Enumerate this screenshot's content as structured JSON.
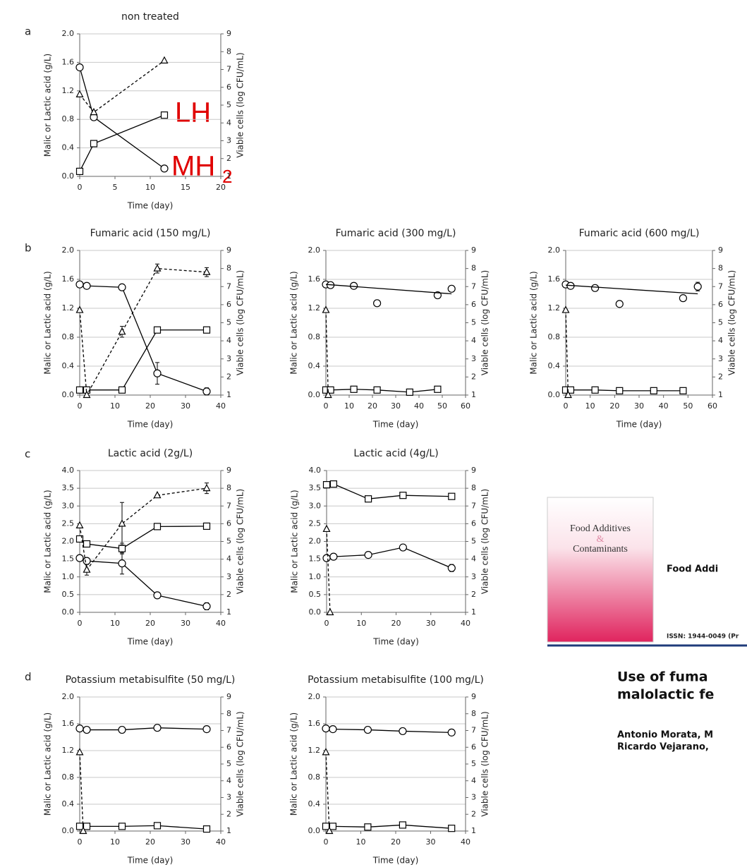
{
  "chart_data": [
    {
      "type": "line",
      "title": "non treated",
      "xlabel": "Time (day)",
      "ylabel": "Malic or Lactic acid (g/L)",
      "y2label": "Viable cells (log CFU/mL)",
      "xlim": [
        0,
        20
      ],
      "xticks": [
        0,
        5,
        10,
        15,
        20
      ],
      "ylim": [
        0,
        2
      ],
      "yticks": [
        {
          "value": 0,
          "label": "0.0"
        },
        0.4,
        0.8,
        1.2,
        1.6,
        {
          "value": 2,
          "label": "2.0"
        }
      ],
      "y2lim": [
        1,
        9
      ],
      "y2ticks": [
        1,
        2,
        3,
        4,
        5,
        6,
        7,
        8,
        9
      ],
      "grid": true,
      "annotations": [
        "LH",
        "MH",
        "2"
      ],
      "series": [
        {
          "marker": "circle",
          "dash": false,
          "color": "#000000",
          "axis": "y",
          "x": [
            0,
            2,
            12
          ],
          "values": [
            1.53,
            0.83,
            0.11
          ]
        },
        {
          "marker": "square",
          "dash": false,
          "color": "#000000",
          "axis": "y",
          "x": [
            0,
            2,
            12
          ],
          "values": [
            0.07,
            0.46,
            0.86
          ]
        },
        {
          "marker": "triangle",
          "dash": true,
          "color": "#000000",
          "axis": "y2",
          "x": [
            0,
            2,
            12
          ],
          "values": [
            5.6,
            4.6,
            7.5
          ]
        }
      ]
    },
    {
      "type": "line",
      "title": "Fumaric acid (150 mg/L)",
      "xlabel": "Time (day)",
      "ylabel": "Malic or Lactic acid (g/L)",
      "y2label": "Viable cells (log CFU/mL)",
      "xlim": [
        0,
        40
      ],
      "xticks": [
        0,
        10,
        20,
        30,
        40
      ],
      "ylim": [
        0,
        2
      ],
      "yticks": [
        {
          "value": 0,
          "label": "0.0"
        },
        0.4,
        0.8,
        1.2,
        1.6,
        {
          "value": 2,
          "label": "2.0"
        }
      ],
      "y2lim": [
        1,
        9
      ],
      "y2ticks": [
        1,
        2,
        3,
        4,
        5,
        6,
        7,
        8,
        9
      ],
      "grid": true,
      "series": [
        {
          "marker": "circle",
          "dash": false,
          "color": "#000000",
          "axis": "y",
          "x": [
            0,
            2,
            12,
            22,
            36
          ],
          "values": [
            1.53,
            1.51,
            1.49,
            0.3,
            0.05
          ],
          "errors": [
            null,
            null,
            null,
            0.15,
            0.05
          ]
        },
        {
          "marker": "square",
          "dash": false,
          "color": "#000000",
          "axis": "y",
          "x": [
            0,
            2,
            12,
            22,
            36
          ],
          "values": [
            0.07,
            0.07,
            0.07,
            0.9,
            0.9
          ]
        },
        {
          "marker": "triangle",
          "dash": true,
          "color": "#000000",
          "axis": "y2",
          "x": [
            0,
            2,
            12,
            22,
            36
          ],
          "values": [
            5.7,
            1,
            4.5,
            8,
            7.8
          ],
          "errors": [
            null,
            null,
            0.3,
            0.25,
            0.25
          ]
        }
      ]
    },
    {
      "type": "line",
      "title": "Fumaric acid (300 mg/L)",
      "xlabel": "Time (day)",
      "ylabel": "Malic or Lactic acid (g/L)",
      "y2label": "Viable cells (log CFU/mL)",
      "xlim": [
        0,
        60
      ],
      "xticks": [
        0,
        10,
        20,
        30,
        40,
        50,
        60
      ],
      "ylim": [
        0,
        2
      ],
      "yticks": [
        {
          "value": 0,
          "label": "0.0"
        },
        0.4,
        0.8,
        1.2,
        1.6,
        {
          "value": 2,
          "label": "2.0"
        }
      ],
      "y2lim": [
        1,
        9
      ],
      "y2ticks": [
        1,
        2,
        3,
        4,
        5,
        6,
        7,
        8,
        9
      ],
      "grid": true,
      "series": [
        {
          "marker": "circle",
          "dash": false,
          "line": false,
          "color": "#000000",
          "axis": "y",
          "x": [
            0,
            2,
            12,
            22,
            48,
            54
          ],
          "values": [
            1.53,
            1.52,
            1.51,
            1.27,
            1.38,
            1.47
          ]
        },
        {
          "marker": "none",
          "dash": false,
          "color": "#000000",
          "axis": "y",
          "x": [
            0,
            54
          ],
          "values": [
            1.53,
            1.4
          ]
        },
        {
          "marker": "square",
          "dash": false,
          "color": "#000000",
          "axis": "y",
          "x": [
            0,
            2,
            12,
            22,
            36,
            48
          ],
          "values": [
            0.07,
            0.07,
            0.08,
            0.07,
            0.04,
            0.08
          ],
          "errors": [
            null,
            null,
            null,
            null,
            null,
            0.04
          ]
        },
        {
          "marker": "triangle",
          "dash": true,
          "color": "#000000",
          "axis": "y2",
          "x": [
            0,
            1
          ],
          "values": [
            5.7,
            1
          ]
        }
      ]
    },
    {
      "type": "line",
      "title": "Fumaric acid (600 mg/L)",
      "xlabel": "Time (day)",
      "ylabel": "Malic or Lactic acid (g/L)",
      "y2label": "Viable cells (log CFU/mL)",
      "xlim": [
        0,
        60
      ],
      "xticks": [
        0,
        10,
        20,
        30,
        40,
        50,
        60
      ],
      "ylim": [
        0,
        2
      ],
      "yticks": [
        {
          "value": 0,
          "label": "0.0"
        },
        0.4,
        0.8,
        1.2,
        1.6,
        {
          "value": 2,
          "label": "2.0"
        }
      ],
      "y2lim": [
        1,
        9
      ],
      "y2ticks": [
        1,
        2,
        3,
        4,
        5,
        6,
        7,
        8,
        9
      ],
      "grid": true,
      "series": [
        {
          "marker": "circle",
          "dash": false,
          "line": false,
          "color": "#000000",
          "axis": "y",
          "x": [
            0,
            2,
            12,
            22,
            48,
            54
          ],
          "values": [
            1.53,
            1.51,
            1.48,
            1.26,
            1.34,
            1.5
          ],
          "errors": [
            null,
            null,
            null,
            null,
            null,
            0.06
          ]
        },
        {
          "marker": "none",
          "dash": false,
          "color": "#000000",
          "axis": "y",
          "x": [
            0,
            54
          ],
          "values": [
            1.52,
            1.4
          ]
        },
        {
          "marker": "square",
          "dash": false,
          "color": "#000000",
          "axis": "y",
          "x": [
            0,
            2,
            12,
            22,
            36,
            48
          ],
          "values": [
            0.07,
            0.07,
            0.07,
            0.06,
            0.06,
            0.06
          ]
        },
        {
          "marker": "triangle",
          "dash": true,
          "color": "#000000",
          "axis": "y2",
          "x": [
            0,
            1
          ],
          "values": [
            5.7,
            1
          ]
        }
      ]
    },
    {
      "type": "line",
      "title": "Lactic acid (2g/L)",
      "xlabel": "Time (day)",
      "ylabel": "Malic or Lactic acid (g/L)",
      "y2label": "Viable cells (log CFU/mL)",
      "xlim": [
        0,
        40
      ],
      "xticks": [
        0,
        10,
        20,
        30,
        40
      ],
      "ylim": [
        0,
        4
      ],
      "yticks": [
        {
          "value": 0,
          "label": "0.0"
        },
        0.5,
        {
          "value": 1,
          "label": "1.0"
        },
        1.5,
        {
          "value": 2,
          "label": "2.0"
        },
        2.5,
        {
          "value": 3,
          "label": "3.0"
        },
        3.5,
        {
          "value": 4,
          "label": "4.0"
        }
      ],
      "y2lim": [
        1,
        9
      ],
      "y2ticks": [
        1,
        2,
        3,
        4,
        5,
        6,
        7,
        8,
        9
      ],
      "grid": true,
      "series": [
        {
          "marker": "circle",
          "dash": false,
          "color": "#000000",
          "axis": "y",
          "x": [
            0,
            2,
            12,
            22,
            36
          ],
          "values": [
            1.53,
            1.45,
            1.38,
            0.48,
            0.17
          ],
          "errors": [
            null,
            null,
            0.3,
            null,
            0.1
          ]
        },
        {
          "marker": "square",
          "dash": false,
          "color": "#000000",
          "axis": "y",
          "x": [
            0,
            2,
            12,
            22,
            36
          ],
          "values": [
            2.07,
            1.93,
            1.8,
            2.42,
            2.43
          ],
          "errors": [
            null,
            null,
            0.15,
            null,
            null
          ]
        },
        {
          "marker": "triangle",
          "dash": true,
          "color": "#000000",
          "axis": "y2",
          "x": [
            0,
            2,
            12,
            22,
            36
          ],
          "values": [
            5.9,
            3.4,
            6,
            7.6,
            8
          ],
          "errors": [
            null,
            0.3,
            1.2,
            null,
            0.3
          ]
        }
      ]
    },
    {
      "type": "line",
      "title": "Lactic acid (4g/L)",
      "xlabel": "Time (day)",
      "ylabel": "Malic or Lactic acid (g/L)",
      "y2label": "Viable cells (log CFU/mL)",
      "xlim": [
        0,
        40
      ],
      "xticks": [
        0,
        10,
        20,
        30,
        40
      ],
      "ylim": [
        0,
        4
      ],
      "yticks": [
        {
          "value": 0,
          "label": "0.0"
        },
        0.5,
        {
          "value": 1,
          "label": "1.0"
        },
        1.5,
        {
          "value": 2,
          "label": "2.0"
        },
        2.5,
        {
          "value": 3,
          "label": "3.0"
        },
        3.5,
        {
          "value": 4,
          "label": "4.0"
        }
      ],
      "y2lim": [
        1,
        9
      ],
      "y2ticks": [
        1,
        2,
        3,
        4,
        5,
        6,
        7,
        8,
        9
      ],
      "grid": true,
      "series": [
        {
          "marker": "circle",
          "dash": false,
          "color": "#000000",
          "axis": "y",
          "x": [
            0,
            2,
            12,
            22,
            36
          ],
          "values": [
            1.53,
            1.57,
            1.62,
            1.83,
            1.25
          ],
          "errors": [
            null,
            null,
            null,
            null,
            0.1
          ]
        },
        {
          "marker": "square",
          "dash": false,
          "color": "#000000",
          "axis": "y",
          "x": [
            0,
            2,
            12,
            22,
            36
          ],
          "values": [
            3.6,
            3.62,
            3.2,
            3.3,
            3.27
          ]
        },
        {
          "marker": "triangle",
          "dash": true,
          "color": "#000000",
          "axis": "y2",
          "x": [
            0,
            1
          ],
          "values": [
            5.7,
            1
          ]
        }
      ]
    },
    {
      "type": "line",
      "title": "Potassium metabisulfite (50 mg/L)",
      "xlabel": "Time (day)",
      "ylabel": "Malic or Lactic acid (g/L)",
      "y2label": "Viable cells (log CFU/mL)",
      "xlim": [
        0,
        40
      ],
      "xticks": [
        0,
        10,
        20,
        30,
        40
      ],
      "ylim": [
        0,
        2
      ],
      "yticks": [
        {
          "value": 0,
          "label": "0.0"
        },
        0.4,
        0.8,
        1.2,
        1.6,
        {
          "value": 2,
          "label": "2.0"
        }
      ],
      "y2lim": [
        1,
        9
      ],
      "y2ticks": [
        1,
        2,
        3,
        4,
        5,
        6,
        7,
        8,
        9
      ],
      "grid": true,
      "series": [
        {
          "marker": "circle",
          "dash": false,
          "color": "#000000",
          "axis": "y",
          "x": [
            0,
            2,
            12,
            22,
            36
          ],
          "values": [
            1.53,
            1.51,
            1.51,
            1.54,
            1.52
          ]
        },
        {
          "marker": "square",
          "dash": false,
          "color": "#000000",
          "axis": "y",
          "x": [
            0,
            2,
            12,
            22,
            36
          ],
          "values": [
            0.07,
            0.07,
            0.07,
            0.08,
            0.03
          ]
        },
        {
          "marker": "triangle",
          "dash": true,
          "color": "#000000",
          "axis": "y2",
          "x": [
            0,
            1
          ],
          "values": [
            5.7,
            1
          ]
        }
      ]
    },
    {
      "type": "line",
      "title": "Potassium metabisulfite (100 mg/L)",
      "xlabel": "Time (day)",
      "ylabel": "Malic or Lactic acid (g/L)",
      "y2label": "Viable cells (log CFU/mL)",
      "xlim": [
        0,
        40
      ],
      "xticks": [
        0,
        10,
        20,
        30,
        40
      ],
      "ylim": [
        0,
        2
      ],
      "yticks": [
        {
          "value": 0,
          "label": "0.0"
        },
        0.4,
        0.8,
        1.2,
        1.6,
        {
          "value": 2,
          "label": "2.0"
        }
      ],
      "y2lim": [
        1,
        9
      ],
      "y2ticks": [
        1,
        2,
        3,
        4,
        5,
        6,
        7,
        8,
        9
      ],
      "grid": true,
      "series": [
        {
          "marker": "circle",
          "dash": false,
          "color": "#000000",
          "axis": "y",
          "x": [
            0,
            2,
            12,
            22,
            36
          ],
          "values": [
            1.53,
            1.52,
            1.51,
            1.49,
            1.47
          ]
        },
        {
          "marker": "square",
          "dash": false,
          "color": "#000000",
          "axis": "y",
          "x": [
            0,
            2,
            12,
            22,
            36
          ],
          "values": [
            0.07,
            0.07,
            0.06,
            0.09,
            0.04
          ]
        },
        {
          "marker": "triangle",
          "dash": true,
          "color": "#000000",
          "axis": "y2",
          "x": [
            0,
            1
          ],
          "values": [
            5.7,
            1
          ]
        }
      ]
    }
  ],
  "panels": [
    "a",
    "b",
    "c",
    "d"
  ],
  "article": {
    "cover_title": "Food Additives",
    "cover_amp": "&",
    "cover_title2": "Contaminants",
    "journal": "Food Addi",
    "issn": "ISSN: 1944-0049 (Pr",
    "title": [
      "Use of fuma",
      "malolactic fe"
    ],
    "authors": [
      "Antonio Morata, M",
      "Ricardo Vejarano,"
    ]
  }
}
